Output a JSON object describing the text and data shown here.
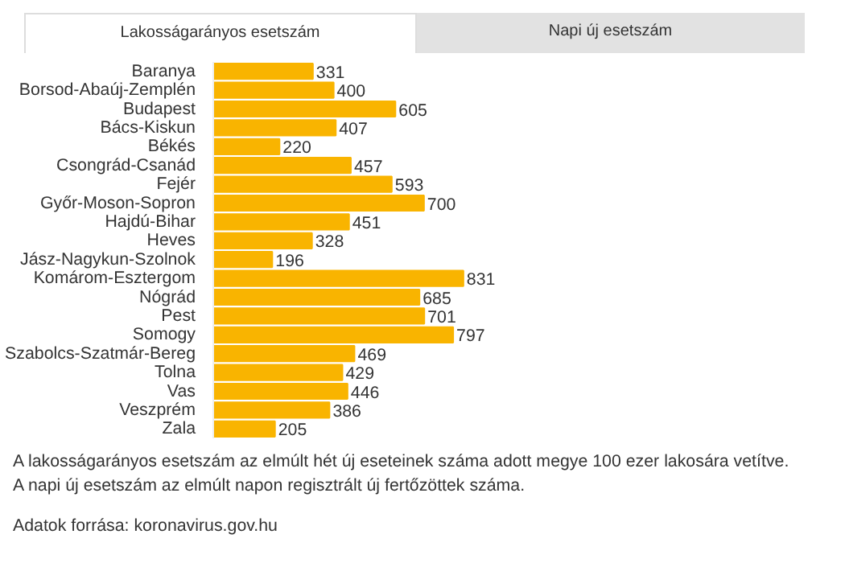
{
  "chart_data": {
    "type": "bar",
    "orientation": "horizontal",
    "title": "Lakosságarányos esetszám",
    "subtitle": "Napi új esetszám",
    "categories": [
      "Baranya",
      "Borsod-Abaúj-Zemplén",
      "Budapest",
      "Bács-Kiskun",
      "Békés",
      "Csongrád-Csanád",
      "Fejér",
      "Győr-Moson-Sopron",
      "Hajdú-Bihar",
      "Heves",
      "Jász-Nagykun-Szolnok",
      "Komárom-Esztergom",
      "Nógrád",
      "Pest",
      "Somogy",
      "Szabolcs-Szatmár-Bereg",
      "Tolna",
      "Vas",
      "Veszprém",
      "Zala"
    ],
    "values": [
      331,
      400,
      605,
      407,
      220,
      457,
      593,
      700,
      451,
      328,
      196,
      831,
      685,
      701,
      797,
      469,
      429,
      446,
      386,
      205
    ],
    "color": "#f9b400",
    "data_labels": true,
    "annotations": [
      "A lakosságarányos esetszám az elmúlt hét új eseteinek száma adott megye 100 ezer lakosára vetítve.",
      "A napi új esetszám az elmúlt napon regisztrált új fertőzöttek száma.",
      "Adatok forrása: koronavirus.gov.hu"
    ]
  }
}
